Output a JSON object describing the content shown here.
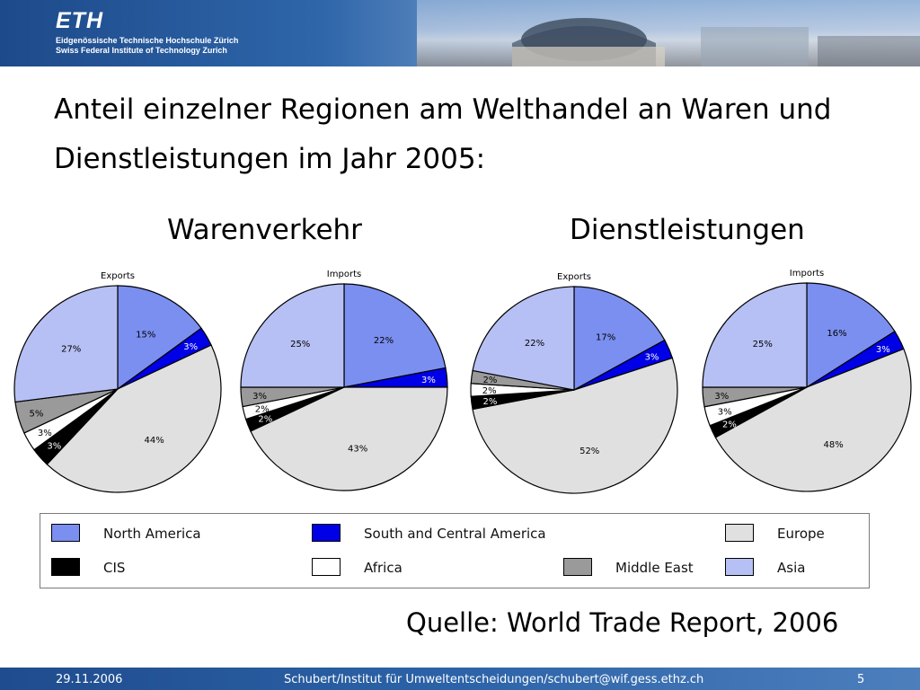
{
  "header": {
    "logo": "ETH",
    "subtitle_de": "Eidgenössische Technische Hochschule Zürich",
    "subtitle_en": "Swiss Federal Institute of Technology Zurich"
  },
  "slide": {
    "title_line1": "Anteil einzelner Regionen am Welthandel an Waren und",
    "title_line2": "Dienstleistungen im Jahr 2005:",
    "group_goods": "Warenverkehr",
    "group_services": "Dienstleistungen",
    "source": "Quelle: World Trade Report, 2006"
  },
  "colors": {
    "North America": "#7b8ff0",
    "South and Central America": "#0000e6",
    "Europe": "#e0e0e0",
    "Asia": "#b7c0f4",
    "CIS": "#000000",
    "Africa": "#ffffff",
    "Middle East": "#9a9a9a"
  },
  "chart_data": [
    {
      "type": "pie",
      "title": "Exports",
      "group": "Warenverkehr",
      "slices": [
        {
          "name": "North America",
          "value": 15,
          "label": "15%"
        },
        {
          "name": "South and Central America",
          "value": 3,
          "label": "3%"
        },
        {
          "name": "Europe",
          "value": 44,
          "label": "44%"
        },
        {
          "name": "CIS",
          "value": 3,
          "label": "3%"
        },
        {
          "name": "Africa",
          "value": 3,
          "label": "3%"
        },
        {
          "name": "Middle East",
          "value": 5,
          "label": "5%"
        },
        {
          "name": "Asia",
          "value": 27,
          "label": "27%"
        }
      ]
    },
    {
      "type": "pie",
      "title": "Imports",
      "group": "Warenverkehr",
      "slices": [
        {
          "name": "North America",
          "value": 22,
          "label": "22%"
        },
        {
          "name": "South and Central America",
          "value": 3,
          "label": "3%"
        },
        {
          "name": "Europe",
          "value": 43,
          "label": "43%"
        },
        {
          "name": "CIS",
          "value": 2,
          "label": "2%"
        },
        {
          "name": "Africa",
          "value": 2,
          "label": "2%"
        },
        {
          "name": "Middle East",
          "value": 3,
          "label": "3%"
        },
        {
          "name": "Asia",
          "value": 25,
          "label": "25%"
        }
      ]
    },
    {
      "type": "pie",
      "title": "Exports",
      "group": "Dienstleistungen",
      "slices": [
        {
          "name": "North America",
          "value": 17,
          "label": "17%"
        },
        {
          "name": "South and Central America",
          "value": 3,
          "label": "3%"
        },
        {
          "name": "Europe",
          "value": 52,
          "label": "52%"
        },
        {
          "name": "CIS",
          "value": 2,
          "label": "2%"
        },
        {
          "name": "Africa",
          "value": 2,
          "label": "2%"
        },
        {
          "name": "Middle East",
          "value": 2,
          "label": "2%"
        },
        {
          "name": "Asia",
          "value": 22,
          "label": "22%"
        }
      ]
    },
    {
      "type": "pie",
      "title": "Imports",
      "group": "Dienstleistungen",
      "slices": [
        {
          "name": "North America",
          "value": 16,
          "label": "16%"
        },
        {
          "name": "South and Central America",
          "value": 3,
          "label": "3%"
        },
        {
          "name": "Europe",
          "value": 48,
          "label": "48%"
        },
        {
          "name": "CIS",
          "value": 2,
          "label": "2%"
        },
        {
          "name": "Africa",
          "value": 3,
          "label": "3%"
        },
        {
          "name": "Middle East",
          "value": 3,
          "label": "3%"
        },
        {
          "name": "Asia",
          "value": 25,
          "label": "25%"
        }
      ]
    }
  ],
  "legend": [
    {
      "name": "North America",
      "label": "North America"
    },
    {
      "name": "South and Central America",
      "label": "South and Central America"
    },
    {
      "name": "Europe",
      "label": "Europe"
    },
    {
      "name": "CIS",
      "label": "CIS"
    },
    {
      "name": "Africa",
      "label": "Africa"
    },
    {
      "name": "Middle East",
      "label": "Middle East"
    },
    {
      "name": "Asia",
      "label": "Asia"
    }
  ],
  "footer": {
    "date": "29.11.2006",
    "author": "Schubert/Institut für Umweltentscheidungen/schubert@wif.gess.ethz.ch",
    "page": "5"
  }
}
